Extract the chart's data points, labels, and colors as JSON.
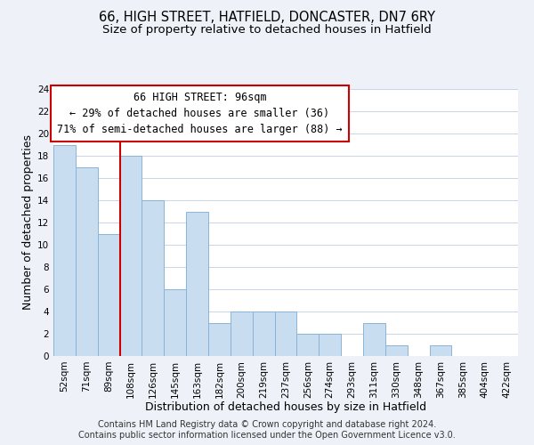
{
  "title": "66, HIGH STREET, HATFIELD, DONCASTER, DN7 6RY",
  "subtitle": "Size of property relative to detached houses in Hatfield",
  "xlabel": "Distribution of detached houses by size in Hatfield",
  "ylabel": "Number of detached properties",
  "bin_labels": [
    "52sqm",
    "71sqm",
    "89sqm",
    "108sqm",
    "126sqm",
    "145sqm",
    "163sqm",
    "182sqm",
    "200sqm",
    "219sqm",
    "237sqm",
    "256sqm",
    "274sqm",
    "293sqm",
    "311sqm",
    "330sqm",
    "348sqm",
    "367sqm",
    "385sqm",
    "404sqm",
    "422sqm"
  ],
  "bar_heights": [
    19,
    17,
    11,
    18,
    14,
    6,
    13,
    3,
    4,
    4,
    4,
    2,
    2,
    0,
    3,
    1,
    0,
    1,
    0,
    0,
    0
  ],
  "bar_color": "#c9ddf0",
  "bar_edge_color": "#8ab4d8",
  "vline_x_index": 2,
  "vline_color": "#cc0000",
  "ylim": [
    0,
    24
  ],
  "yticks": [
    0,
    2,
    4,
    6,
    8,
    10,
    12,
    14,
    16,
    18,
    20,
    22,
    24
  ],
  "annotation_title": "66 HIGH STREET: 96sqm",
  "annotation_line1": "← 29% of detached houses are smaller (36)",
  "annotation_line2": "71% of semi-detached houses are larger (88) →",
  "footer_line1": "Contains HM Land Registry data © Crown copyright and database right 2024.",
  "footer_line2": "Contains public sector information licensed under the Open Government Licence v3.0.",
  "background_color": "#eef2f8",
  "plot_background_color": "#ffffff",
  "grid_color": "#c8d4e8",
  "title_fontsize": 10.5,
  "subtitle_fontsize": 9.5,
  "axis_label_fontsize": 9,
  "tick_fontsize": 7.5,
  "annotation_fontsize": 8.5,
  "footer_fontsize": 7
}
